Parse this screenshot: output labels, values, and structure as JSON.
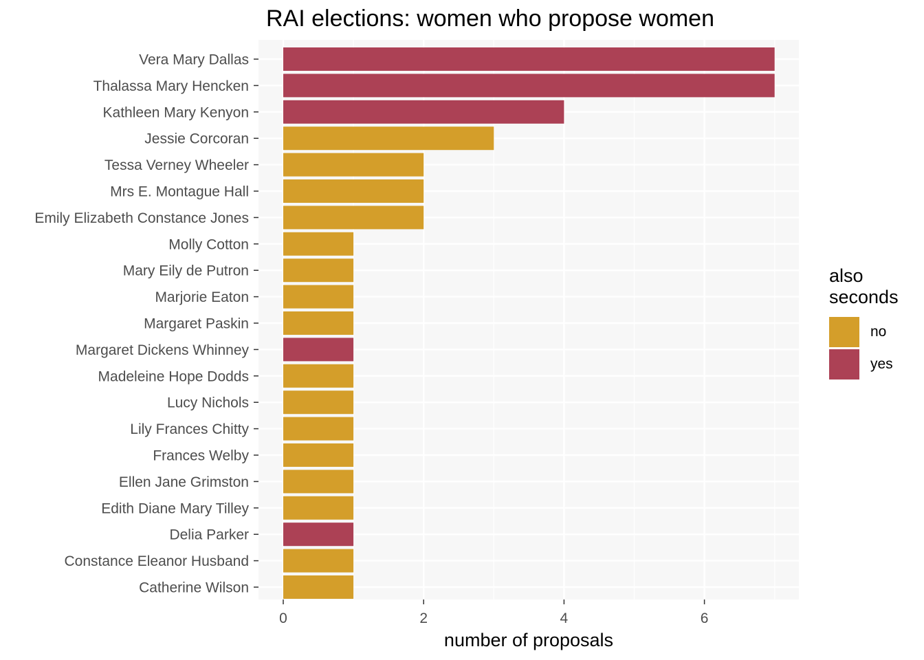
{
  "chart_data": {
    "type": "bar",
    "orientation": "horizontal",
    "title": "RAI elections: women who propose women",
    "xlabel": "number of proposals",
    "ylabel": "",
    "xlim": [
      0,
      7
    ],
    "xticks": [
      0,
      2,
      4,
      6
    ],
    "grid": true,
    "legend": {
      "title": "also seconds",
      "placement": "right",
      "entries": [
        {
          "label": "no",
          "color": "#D49E2A"
        },
        {
          "label": "yes",
          "color": "#AC4155"
        }
      ]
    },
    "categories": [
      "Vera Mary Dallas",
      "Thalassa Mary Hencken",
      "Kathleen Mary Kenyon",
      "Jessie Corcoran",
      "Tessa Verney Wheeler",
      "Mrs E. Montague Hall",
      "Emily Elizabeth Constance Jones",
      "Molly Cotton",
      "Mary Eily de Putron",
      "Marjorie Eaton",
      "Margaret Paskin",
      "Margaret Dickens Whinney",
      "Madeleine Hope Dodds",
      "Lucy Nichols",
      "Lily Frances Chitty",
      "Frances Welby",
      "Ellen Jane Grimston",
      "Edith Diane Mary Tilley",
      "Delia Parker",
      "Constance Eleanor Husband",
      "Catherine Wilson"
    ],
    "values": [
      7,
      7,
      4,
      3,
      2,
      2,
      2,
      1,
      1,
      1,
      1,
      1,
      1,
      1,
      1,
      1,
      1,
      1,
      1,
      1,
      1
    ],
    "also_seconds": [
      "yes",
      "yes",
      "yes",
      "no",
      "no",
      "no",
      "no",
      "no",
      "no",
      "no",
      "no",
      "yes",
      "no",
      "no",
      "no",
      "no",
      "no",
      "no",
      "yes",
      "no",
      "no"
    ]
  }
}
